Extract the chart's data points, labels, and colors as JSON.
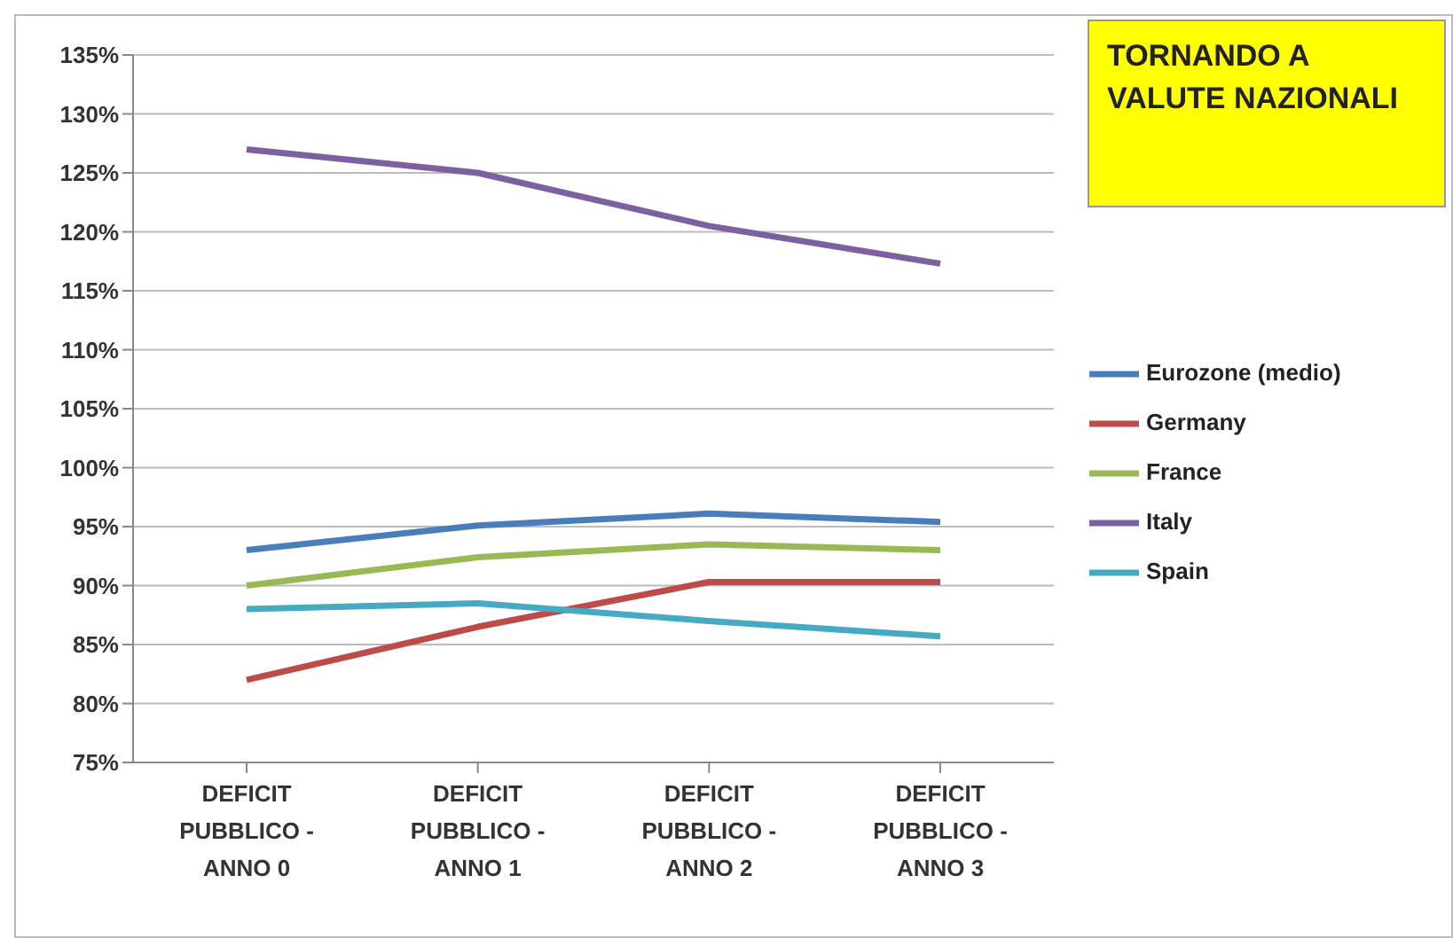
{
  "chart_data": {
    "type": "line",
    "title": "TORNANDO A VALUTE NAZIONALI",
    "categories": [
      "DEFICIT PUBBLICO - ANNO 0",
      "DEFICIT PUBBLICO - ANNO 1",
      "DEFICIT PUBBLICO - ANNO 2",
      "DEFICIT PUBBLICO - ANNO 3"
    ],
    "series": [
      {
        "name": "Eurozone (medio)",
        "color": "#4a7ebb",
        "values": [
          93,
          95.1,
          96.1,
          95.4
        ]
      },
      {
        "name": "Germany",
        "color": "#be4b48",
        "values": [
          82,
          86.5,
          90.3,
          90.3
        ]
      },
      {
        "name": "France",
        "color": "#98b954",
        "values": [
          90,
          92.4,
          93.5,
          93
        ]
      },
      {
        "name": "Italy",
        "color": "#7d60a0",
        "values": [
          127,
          125,
          120.5,
          117.3
        ]
      },
      {
        "name": "Spain",
        "color": "#46aac5",
        "values": [
          88,
          88.5,
          87,
          85.7
        ]
      }
    ],
    "ylim": [
      75,
      135
    ],
    "yticks": [
      {
        "value": 75,
        "label": "75%"
      },
      {
        "value": 80,
        "label": "80%"
      },
      {
        "value": 85,
        "label": "85%"
      },
      {
        "value": 90,
        "label": "90%"
      },
      {
        "value": 95,
        "label": "95%"
      },
      {
        "value": 100,
        "label": "100%"
      },
      {
        "value": 105,
        "label": "105%"
      },
      {
        "value": 110,
        "label": "110%"
      },
      {
        "value": 115,
        "label": "115%"
      },
      {
        "value": 120,
        "label": "120%"
      },
      {
        "value": 125,
        "label": "125%"
      },
      {
        "value": 130,
        "label": "130%"
      },
      {
        "value": 135,
        "label": "135%"
      }
    ],
    "grid": "y",
    "legend": "right",
    "marker": "none",
    "line_style": "solid"
  }
}
